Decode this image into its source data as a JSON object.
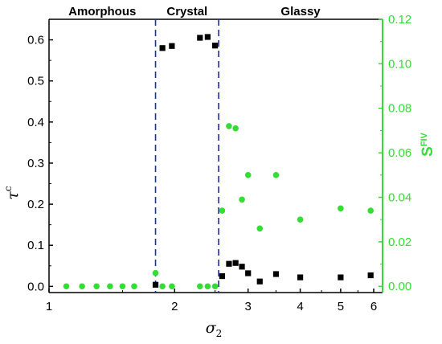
{
  "chart_data": {
    "type": "scatter",
    "x_scale": "log",
    "xlim": [
      1,
      6.3
    ],
    "x_ticks": [
      1,
      2,
      3,
      4,
      5,
      6
    ],
    "x_tick_labels": [
      "1",
      "2",
      "3",
      "4",
      "5",
      "6"
    ],
    "xlabel": "σ",
    "xlabel_sub": "2",
    "y_left": {
      "label": "τ",
      "label_sup": "c",
      "lim": [
        -0.015,
        0.65
      ],
      "ticks": [
        0.0,
        0.1,
        0.2,
        0.3,
        0.4,
        0.5,
        0.6
      ],
      "tick_labels": [
        "0.0",
        "0.1",
        "0.2",
        "0.3",
        "0.4",
        "0.5",
        "0.6"
      ],
      "color": "#000000"
    },
    "y_right": {
      "label": "S",
      "label_sup": "FIV",
      "lim": [
        -0.0028,
        0.12
      ],
      "ticks": [
        0.0,
        0.02,
        0.04,
        0.06,
        0.08,
        0.1,
        0.12
      ],
      "tick_labels": [
        "0.00",
        "0.02",
        "0.04",
        "0.06",
        "0.08",
        "0.10",
        "0.12"
      ],
      "color": "#33dd33"
    },
    "regions": [
      {
        "label": "Amorphous",
        "x": [
          1,
          1.8
        ]
      },
      {
        "label": "Crystal",
        "x": [
          1.8,
          2.55
        ]
      },
      {
        "label": "Glassy",
        "x": [
          2.55,
          6.3
        ]
      }
    ],
    "dividers": [
      1.8,
      2.55
    ],
    "divider_color": "#1f2f9f",
    "series": [
      {
        "axis": "left",
        "marker": "square",
        "color": "#000000",
        "points": [
          [
            1.8,
            0.004
          ],
          [
            1.87,
            0.58
          ],
          [
            1.97,
            0.585
          ],
          [
            2.3,
            0.605
          ],
          [
            2.4,
            0.607
          ],
          [
            2.5,
            0.586
          ],
          [
            2.6,
            0.025
          ],
          [
            2.7,
            0.055
          ],
          [
            2.8,
            0.057
          ],
          [
            2.9,
            0.048
          ],
          [
            3.0,
            0.032
          ],
          [
            3.2,
            0.012
          ],
          [
            3.5,
            0.03
          ],
          [
            4.0,
            0.022
          ],
          [
            5.0,
            0.022
          ],
          [
            5.9,
            0.027
          ]
        ]
      },
      {
        "axis": "right",
        "marker": "circle",
        "color": "#33dd33",
        "points": [
          [
            1.1,
            0.0
          ],
          [
            1.2,
            0.0
          ],
          [
            1.3,
            0.0
          ],
          [
            1.4,
            0.0
          ],
          [
            1.5,
            0.0
          ],
          [
            1.6,
            0.0
          ],
          [
            1.8,
            0.006
          ],
          [
            1.87,
            0.0
          ],
          [
            1.97,
            0.0
          ],
          [
            2.3,
            0.0
          ],
          [
            2.4,
            0.0
          ],
          [
            2.5,
            0.0
          ],
          [
            2.6,
            0.034
          ],
          [
            2.7,
            0.072
          ],
          [
            2.8,
            0.071
          ],
          [
            2.9,
            0.039
          ],
          [
            3.0,
            0.05
          ],
          [
            3.2,
            0.026
          ],
          [
            3.5,
            0.05
          ],
          [
            4.0,
            0.03
          ],
          [
            5.0,
            0.035
          ],
          [
            5.9,
            0.034
          ]
        ]
      }
    ]
  }
}
